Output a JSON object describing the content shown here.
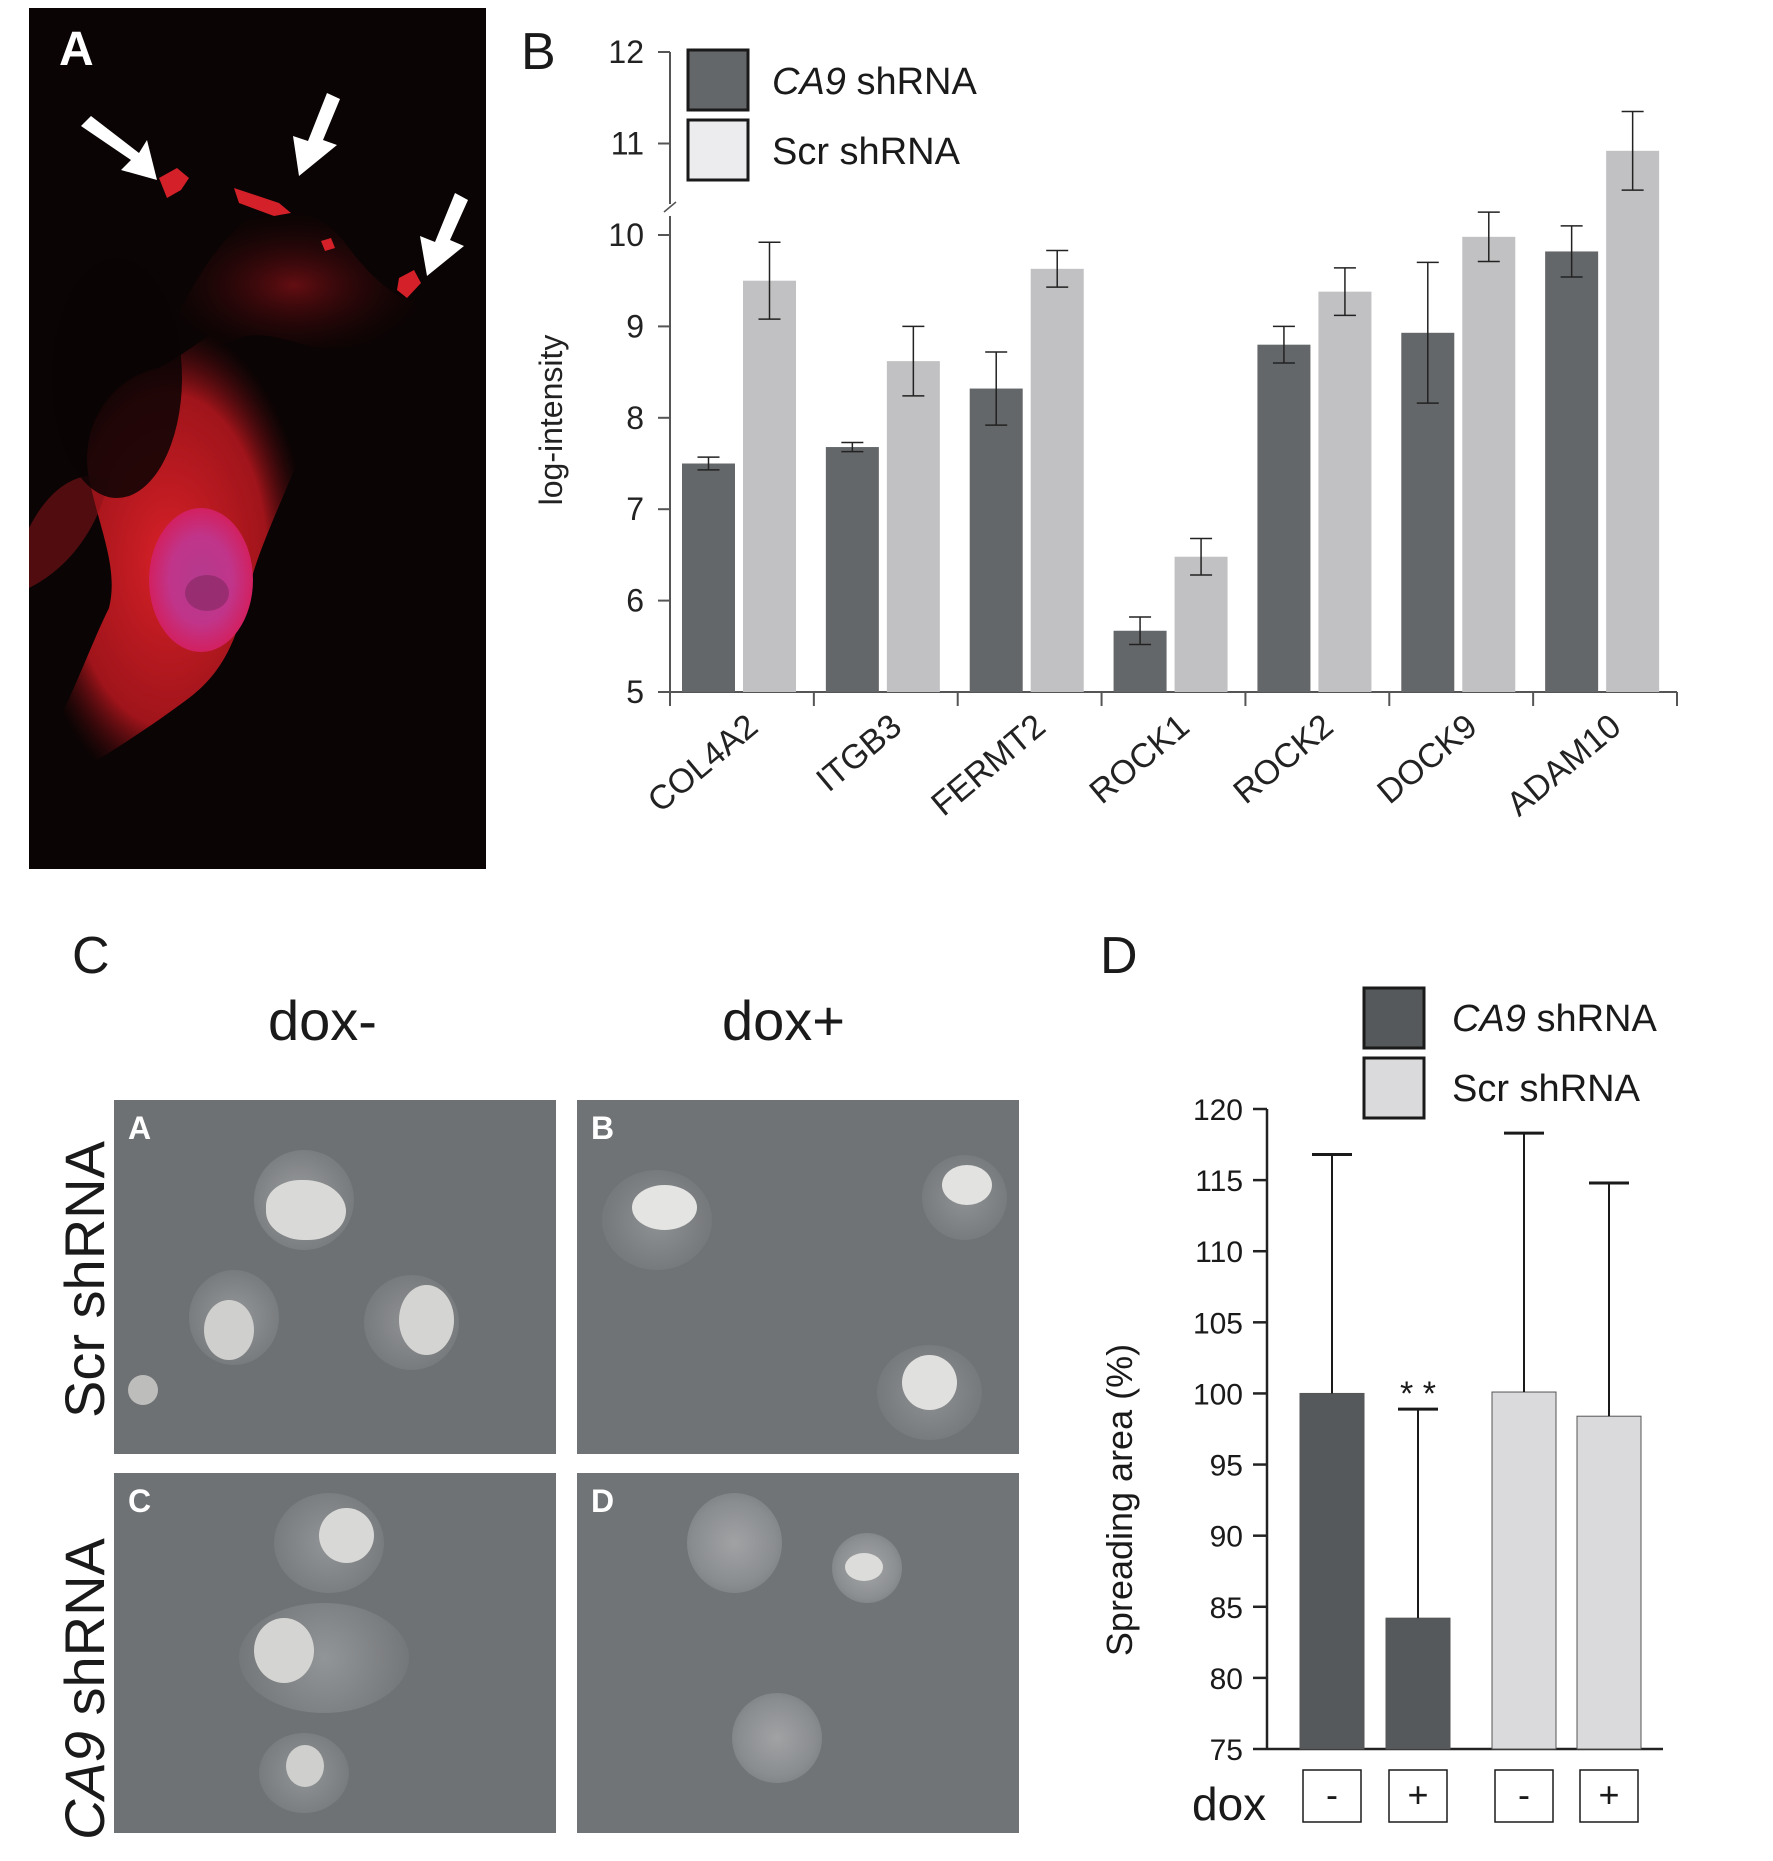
{
  "panel_a": {
    "letter": "A",
    "colors": {
      "background": "#0a0404",
      "cytoplasm": "#c81c22",
      "nucleus": "#c0358a",
      "arrow": "#ffffff"
    }
  },
  "panel_b": {
    "letter": "B"
  },
  "panel_c": {
    "letter": "C",
    "col_headers": [
      "dox-",
      "dox+"
    ],
    "row_headers": [
      {
        "italic": "",
        "text": "Scr shRNA"
      },
      {
        "italic": "CA9",
        "text": " shRNA"
      }
    ],
    "sub_labels": [
      "A",
      "B",
      "C",
      "D"
    ]
  },
  "panel_d": {
    "letter": "D"
  },
  "chart_data": [
    {
      "type": "bar",
      "id": "B",
      "ylabel": "log-intensity",
      "ylim": [
        5,
        12
      ],
      "yticks": [
        5,
        6,
        7,
        8,
        9,
        10,
        11,
        12
      ],
      "axis_break": [
        10,
        11
      ],
      "categories": [
        "COL4A2",
        "ITGB3",
        "FERMT2",
        "ROCK1",
        "ROCK2",
        "DOCK9",
        "ADAM10"
      ],
      "series": [
        {
          "name": "CA9 shRNA",
          "name_italic": "CA9",
          "name_rest": " shRNA",
          "color": "#646769",
          "values": [
            7.5,
            7.68,
            8.32,
            5.67,
            8.8,
            8.93,
            9.82
          ],
          "errors": [
            0.07,
            0.05,
            0.4,
            0.15,
            0.2,
            0.77,
            0.28
          ]
        },
        {
          "name": "Scr shRNA",
          "name_italic": "",
          "name_rest": "Scr shRNA",
          "color": "#c1c1c3",
          "legend_color": "#ececee",
          "values": [
            9.5,
            8.62,
            9.63,
            6.48,
            9.38,
            9.98,
            10.92
          ],
          "errors": [
            0.42,
            0.38,
            0.2,
            0.2,
            0.26,
            0.27,
            0.43
          ]
        }
      ],
      "legend_position": "top-left"
    },
    {
      "type": "bar",
      "id": "D",
      "ylabel": "Spreading area (%)",
      "ylim": [
        75,
        120
      ],
      "yticks": [
        75,
        80,
        85,
        90,
        95,
        100,
        105,
        110,
        115,
        120
      ],
      "x_row_label": "dox",
      "categories": [
        "-",
        "+",
        "-",
        "+"
      ],
      "bars": [
        {
          "series": "CA9 shRNA",
          "value": 100,
          "error_top": 116.8,
          "color": "#56595b",
          "annotation": ""
        },
        {
          "series": "CA9 shRNA",
          "value": 84.2,
          "error_top": 98.9,
          "color": "#56595b",
          "annotation": "* *"
        },
        {
          "series": "Scr shRNA",
          "value": 100.1,
          "error_top": 118.3,
          "color": "#dadadc",
          "annotation": ""
        },
        {
          "series": "Scr shRNA",
          "value": 98.4,
          "error_top": 114.8,
          "color": "#dadadc",
          "annotation": ""
        }
      ],
      "legend": [
        {
          "name": "CA9 shRNA",
          "name_italic": "CA9",
          "name_rest": " shRNA",
          "color": "#56595b"
        },
        {
          "name": "Scr shRNA",
          "name_italic": "",
          "name_rest": "Scr shRNA",
          "color": "#dadadc"
        }
      ],
      "legend_position": "top-right"
    }
  ]
}
